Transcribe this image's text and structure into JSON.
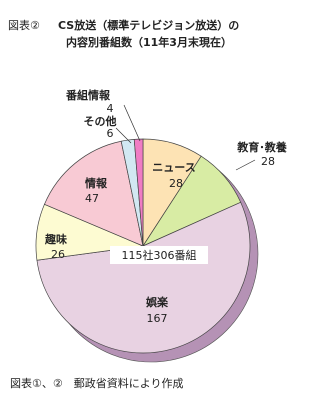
{
  "chart_data": {
    "type": "pie",
    "figure_label": "図表②",
    "title_lines": [
      "CS放送（標準テレビジョン放送）の",
      "内容別番組数（11年3月末現在）"
    ],
    "center_label": "115社306番組",
    "source": "図表①、②　郵政省資料により作成",
    "categories": [
      "ニュース",
      "教育･教養",
      "娯楽",
      "趣味",
      "情報",
      "その他",
      "番組情報"
    ],
    "values": [
      28,
      28,
      167,
      26,
      47,
      6,
      4
    ],
    "colors": [
      "#fde3b4",
      "#d8eca4",
      "#e8d2e2",
      "#fdfbd2",
      "#f8cad4",
      "#d2e8f2",
      "#f07cc4"
    ]
  }
}
